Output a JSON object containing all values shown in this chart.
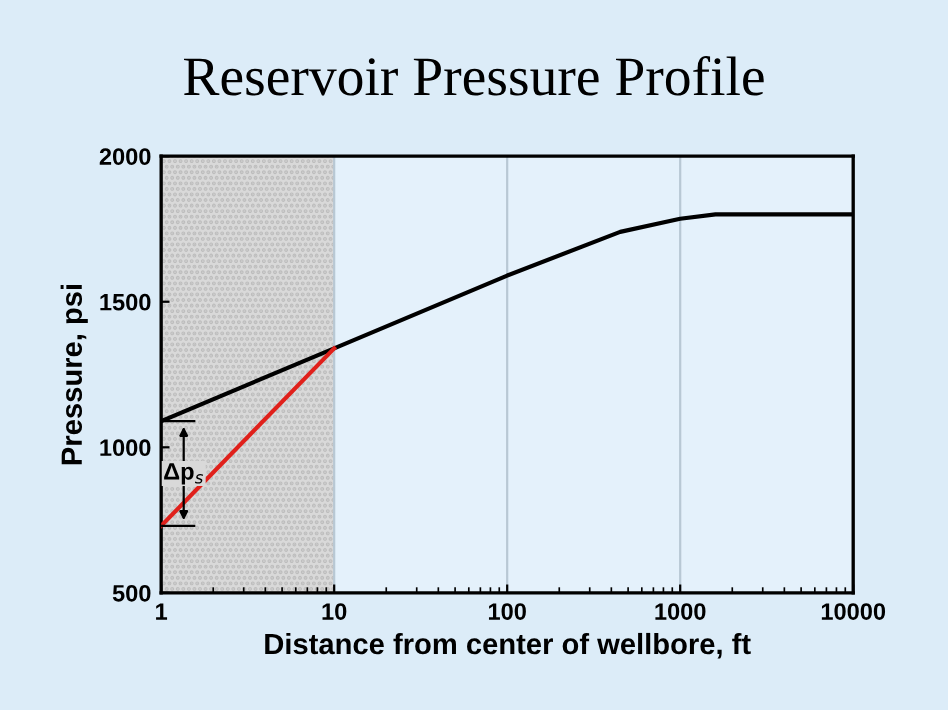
{
  "chart_data": {
    "type": "line",
    "title": "Reservoir Pressure Profile",
    "xlabel": "Distance from center of wellbore, ft",
    "ylabel": "Pressure, psi",
    "log": "x",
    "xlim": [
      1,
      10000
    ],
    "xticks": [
      1,
      10,
      100,
      1000,
      10000
    ],
    "ylim": [
      500,
      2000
    ],
    "yticks": [
      500,
      1000,
      1500,
      2000
    ],
    "grid": "x",
    "legend": false,
    "marker": "none",
    "line_style": "solid",
    "series": [
      {
        "color": "#000000",
        "x": [
          1,
          10,
          100,
          450,
          1000,
          1600,
          10000
        ],
        "values": [
          1090,
          1340,
          1590,
          1740,
          1785,
          1800,
          1800
        ]
      },
      {
        "color": "#e0201b",
        "x": [
          1,
          10
        ],
        "values": [
          730,
          1340
        ]
      }
    ],
    "bands": [
      {
        "axis": "x",
        "from": 1,
        "to": 10,
        "color": "#d9d9d9"
      }
    ],
    "annotations": [
      {
        "text": "Δp$_{s}$",
        "x": 1.35,
        "y": 910
      }
    ]
  }
}
